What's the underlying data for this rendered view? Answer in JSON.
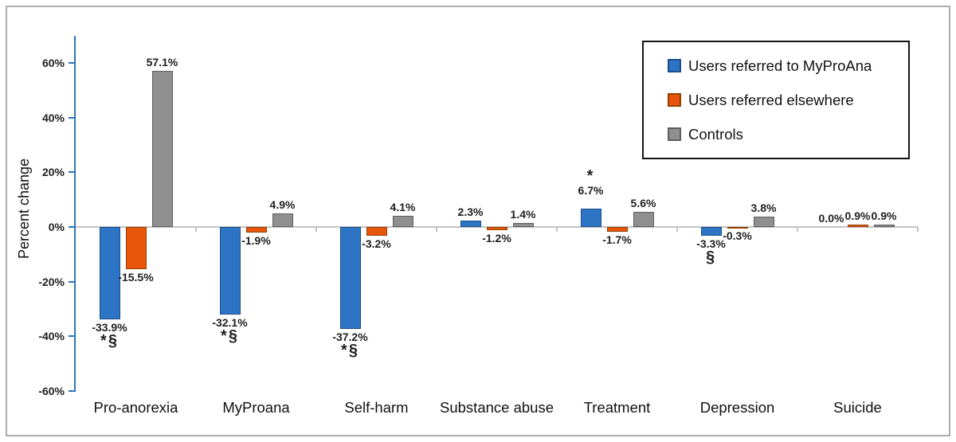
{
  "figure": {
    "background": "#FFFFFF",
    "border_color": "#ACACAC"
  },
  "chart_data": {
    "type": "bar",
    "title": "",
    "ylabel": "Percent change",
    "ylim": [
      -60,
      60
    ],
    "grid": false,
    "legend_position": "top-right",
    "axis_color": "#2E75B6",
    "zero_line_color": "#C4C4C4",
    "label_color": "#1F1F1F",
    "ytick_values": [
      60,
      40,
      20,
      0,
      -20,
      -40,
      -60
    ],
    "ytick_labels": [
      "60%",
      "40%",
      "20%",
      "0%",
      "-20%",
      "-40%",
      "-60%"
    ],
    "categories": [
      "Pro-anorexia",
      "MyProana",
      "Self-harm",
      "Substance abuse",
      "Treatment",
      "Depression",
      "Suicide"
    ],
    "series": [
      {
        "name": "Users referred to MyProAna",
        "color": "#2D74C4",
        "border_color": "#1C4E89",
        "values": [
          -33.9,
          -32.1,
          -37.2,
          2.3,
          6.7,
          -3.3,
          0.0
        ],
        "value_labels": [
          "-33.9%",
          "-32.1%",
          "-37.2%",
          "2.3%",
          "6.7%",
          "-3.3%",
          "0.0%"
        ],
        "annotations": [
          "*§",
          "*§",
          "*§",
          "",
          "*",
          "§",
          ""
        ],
        "annotation_side": [
          "below",
          "below",
          "below",
          "",
          "above",
          "below",
          ""
        ]
      },
      {
        "name": "Users referred elsewhere",
        "color": "#E7560B",
        "border_color": "#943E00",
        "values": [
          -15.5,
          -1.9,
          -3.2,
          -1.2,
          -1.7,
          -0.3,
          0.9
        ],
        "value_labels": [
          "-15.5%",
          "-1.9%",
          "-3.2%",
          "-1.2%",
          "-1.7%",
          "-0.3%",
          "0.9%"
        ],
        "annotations": [
          "",
          "",
          "",
          "",
          "",
          "",
          ""
        ],
        "annotation_side": [
          "",
          "",
          "",
          "",
          "",
          "",
          ""
        ]
      },
      {
        "name": "Controls",
        "color": "#8F8F8F",
        "border_color": "#5E5E5E",
        "values": [
          57.1,
          4.9,
          4.1,
          1.4,
          5.6,
          3.8,
          0.9
        ],
        "value_labels": [
          "57.1%",
          "4.9%",
          "4.1%",
          "1.4%",
          "5.6%",
          "3.8%",
          "0.9%"
        ],
        "annotations": [
          "",
          "",
          "",
          "",
          "",
          "",
          ""
        ],
        "annotation_side": [
          "",
          "",
          "",
          "",
          "",
          "",
          ""
        ]
      }
    ]
  }
}
